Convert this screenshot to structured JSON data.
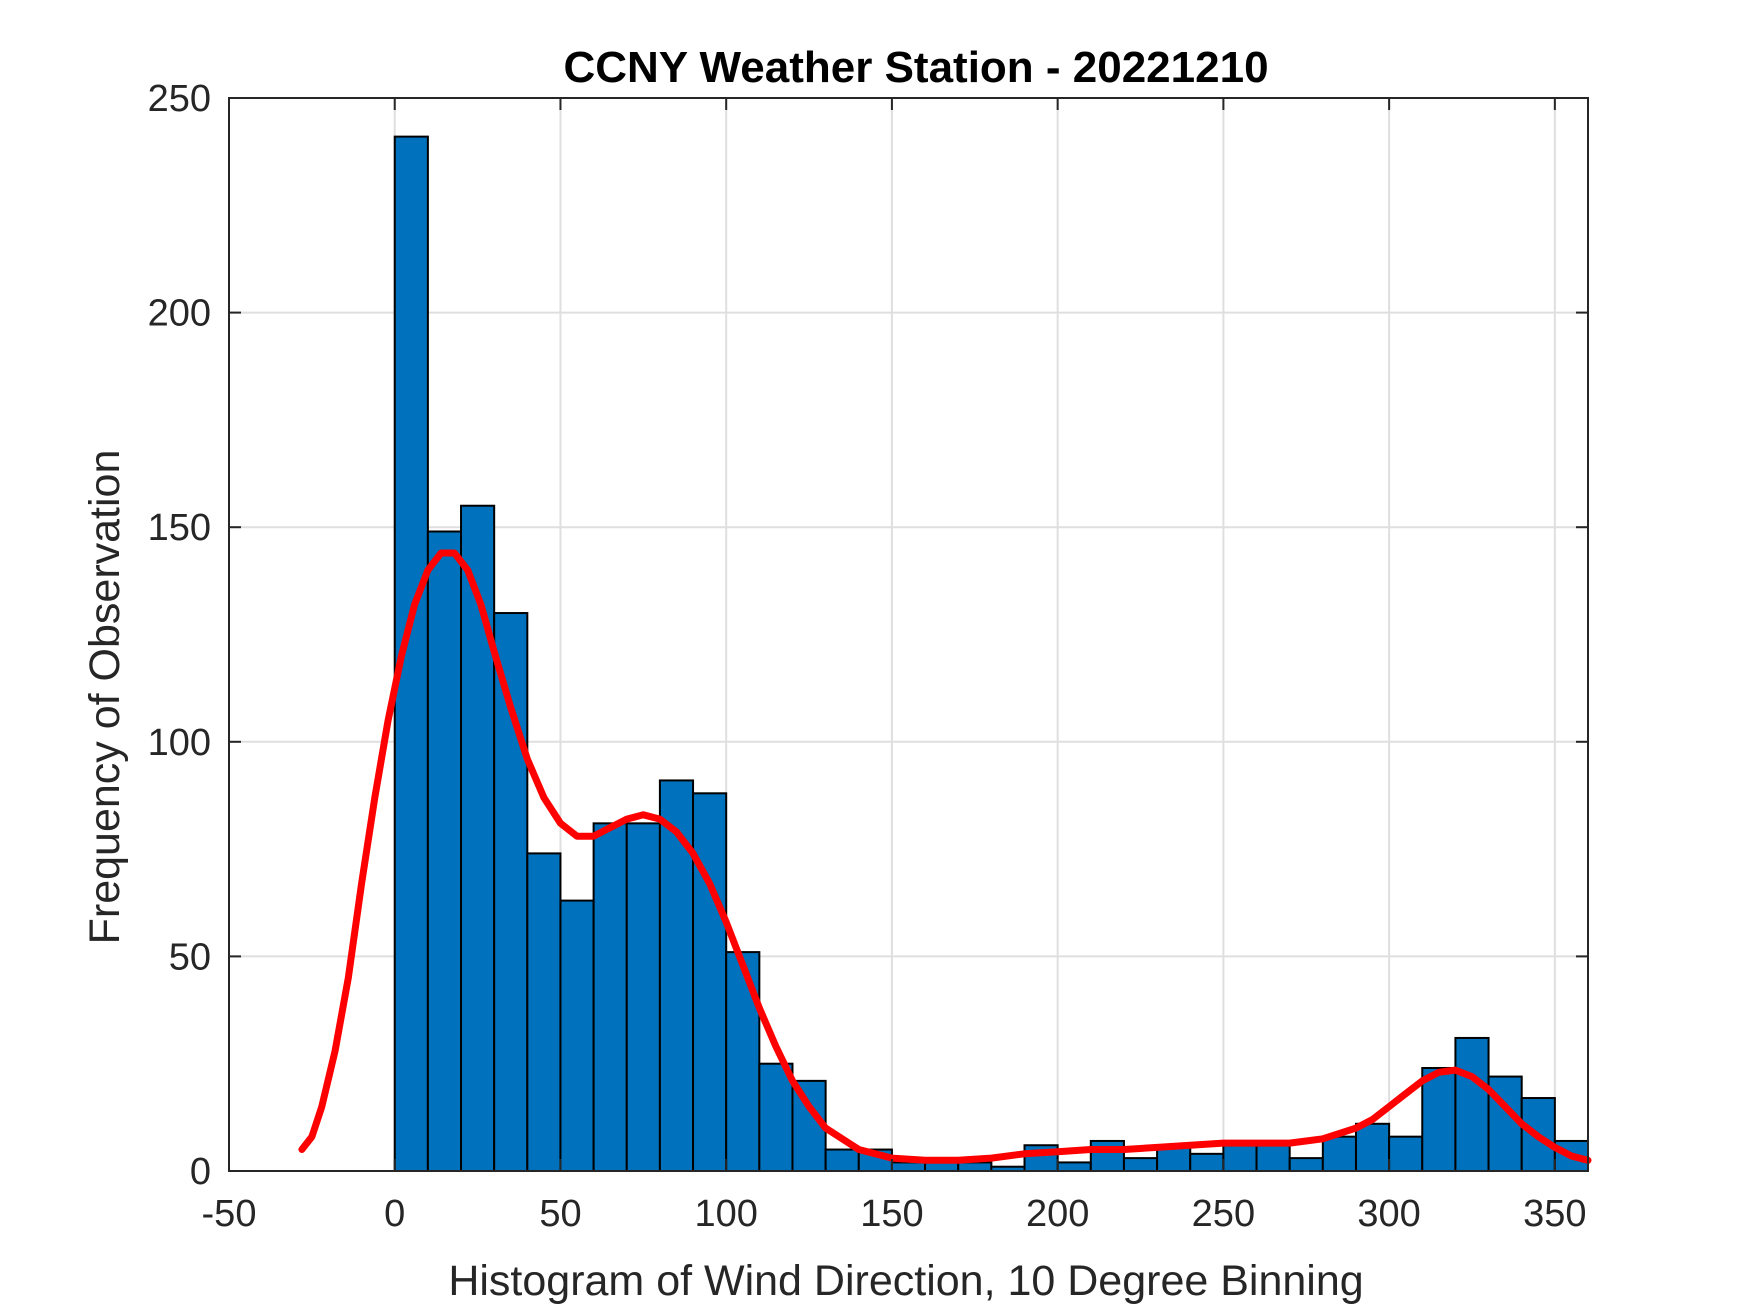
{
  "chart_data": {
    "type": "bar",
    "title": "CCNY Weather Station - 20221210",
    "xlabel": "Histogram of Wind Direction, 10 Degree Binning",
    "ylabel": "Frequency of Observation",
    "xlim": [
      -50,
      360
    ],
    "ylim": [
      0,
      250
    ],
    "xticks": [
      -50,
      0,
      50,
      100,
      150,
      200,
      250,
      300,
      350
    ],
    "yticks": [
      0,
      50,
      100,
      150,
      200,
      250
    ],
    "grid": true,
    "bin_width": 10,
    "bins": [
      {
        "start": 0,
        "count": 241
      },
      {
        "start": 10,
        "count": 149
      },
      {
        "start": 20,
        "count": 155
      },
      {
        "start": 30,
        "count": 130
      },
      {
        "start": 40,
        "count": 74
      },
      {
        "start": 50,
        "count": 63
      },
      {
        "start": 60,
        "count": 81
      },
      {
        "start": 70,
        "count": 81
      },
      {
        "start": 80,
        "count": 91
      },
      {
        "start": 90,
        "count": 88
      },
      {
        "start": 100,
        "count": 51
      },
      {
        "start": 110,
        "count": 25
      },
      {
        "start": 120,
        "count": 21
      },
      {
        "start": 130,
        "count": 5
      },
      {
        "start": 140,
        "count": 5
      },
      {
        "start": 150,
        "count": 2
      },
      {
        "start": 160,
        "count": 2
      },
      {
        "start": 170,
        "count": 2
      },
      {
        "start": 180,
        "count": 1
      },
      {
        "start": 190,
        "count": 6
      },
      {
        "start": 200,
        "count": 2
      },
      {
        "start": 210,
        "count": 7
      },
      {
        "start": 220,
        "count": 3
      },
      {
        "start": 230,
        "count": 6
      },
      {
        "start": 240,
        "count": 4
      },
      {
        "start": 250,
        "count": 7
      },
      {
        "start": 260,
        "count": 7
      },
      {
        "start": 270,
        "count": 3
      },
      {
        "start": 280,
        "count": 8
      },
      {
        "start": 290,
        "count": 11
      },
      {
        "start": 300,
        "count": 8
      },
      {
        "start": 310,
        "count": 24
      },
      {
        "start": 320,
        "count": 31
      },
      {
        "start": 330,
        "count": 22
      },
      {
        "start": 340,
        "count": 17
      },
      {
        "start": 350,
        "count": 7
      }
    ],
    "fit_curve": {
      "name": "density fit",
      "x": [
        -28,
        -25,
        -22,
        -18,
        -14,
        -10,
        -6,
        -2,
        2,
        6,
        10,
        14,
        18,
        22,
        26,
        30,
        35,
        40,
        45,
        50,
        55,
        60,
        65,
        70,
        75,
        80,
        85,
        90,
        95,
        100,
        105,
        110,
        115,
        120,
        125,
        130,
        140,
        150,
        160,
        170,
        180,
        190,
        200,
        210,
        220,
        230,
        240,
        250,
        260,
        270,
        280,
        290,
        295,
        300,
        305,
        310,
        315,
        320,
        325,
        330,
        335,
        340,
        345,
        350,
        355,
        360
      ],
      "y": [
        5,
        8,
        15,
        28,
        45,
        67,
        87,
        105,
        120,
        132,
        140,
        144,
        144,
        140,
        132,
        121,
        108,
        96,
        87,
        81,
        78,
        78,
        80,
        82,
        83,
        82,
        79,
        74,
        67,
        58,
        48,
        38,
        29,
        21,
        15,
        10,
        5,
        3,
        2.5,
        2.5,
        3,
        4,
        4.5,
        5,
        5,
        5.5,
        6,
        6.5,
        6.5,
        6.5,
        7.5,
        10,
        12,
        15,
        18,
        21,
        23,
        23.5,
        22,
        19,
        15,
        11,
        8,
        5.5,
        3.5,
        2.5
      ]
    },
    "colors": {
      "bar_fill": "#0072BD",
      "bar_edge": "#000000",
      "fit_line": "#FF0000",
      "grid": "#dfdfdf",
      "axis": "#262626"
    }
  }
}
